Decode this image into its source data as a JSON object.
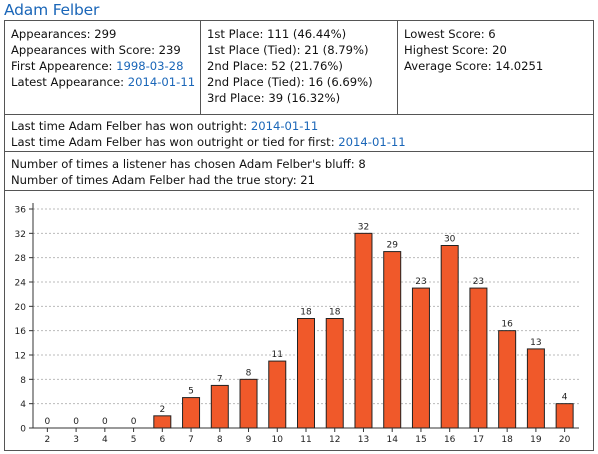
{
  "title": "Adam Felber",
  "appearances": {
    "appearances": "Appearances: 299",
    "appearances_with_score": "Appearances with Score: 239",
    "first_label": "First Appearence: ",
    "first_date": "1998-03-28",
    "latest_label": "Latest Appearance: ",
    "latest_date": "2014-01-11"
  },
  "places": {
    "first": "1st Place: 111 (46.44%)",
    "first_tied": "1st Place (Tied): 21 (8.79%)",
    "second": "2nd Place: 52 (21.76%)",
    "second_tied": "2nd Place (Tied): 16 (6.69%)",
    "third": "3rd Place: 39 (16.32%)"
  },
  "scores": {
    "lowest": "Lowest Score: 6",
    "highest": "Highest Score: 20",
    "average": "Average Score: 14.0251"
  },
  "wins": {
    "outright_label": "Last time Adam Felber has won outright: ",
    "outright_date": "2014-01-11",
    "tied_label": "Last time Adam Felber has won outright or tied for first: ",
    "tied_date": "2014-01-11"
  },
  "bluff": {
    "chosen": "Number of times a listener has chosen Adam Felber's bluff: 8",
    "true_story": "Number of times Adam Felber had the true story: 21"
  },
  "colors": {
    "link": "#1a66b8",
    "bar_fill": "#f0592a",
    "bar_stroke": "#222222",
    "grid": "#bbbbbb"
  },
  "chart_data": {
    "type": "bar",
    "categories": [
      "2",
      "3",
      "4",
      "5",
      "6",
      "7",
      "8",
      "9",
      "10",
      "11",
      "12",
      "13",
      "14",
      "15",
      "16",
      "17",
      "18",
      "19",
      "20"
    ],
    "values": [
      0,
      0,
      0,
      0,
      2,
      5,
      7,
      8,
      11,
      18,
      18,
      32,
      29,
      23,
      30,
      23,
      16,
      13,
      4
    ],
    "ylim": [
      0,
      36
    ],
    "yticks": [
      "0",
      "4",
      "8",
      "12",
      "16",
      "20",
      "24",
      "28",
      "32",
      "36"
    ],
    "grid": true,
    "data_labels": true
  }
}
